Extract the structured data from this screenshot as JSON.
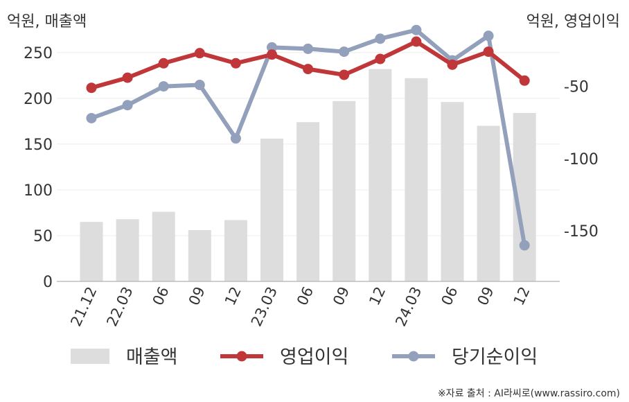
{
  "chart_data": {
    "type": "bar+line",
    "left_axis_unit": "억원, 매출액",
    "right_axis_unit": "억원, 영업이익",
    "categories": [
      "21.12",
      "22.03",
      "06",
      "09",
      "12",
      "23.03",
      "06",
      "09",
      "12",
      "24.03",
      "06",
      "09",
      "12"
    ],
    "left_axis": {
      "ylim": [
        0,
        262
      ],
      "ticks": [
        0,
        50,
        100,
        150,
        200,
        250
      ]
    },
    "right_axis": {
      "ylim": [
        -185,
        -19
      ],
      "ticks": [
        -50,
        -100,
        -150
      ]
    },
    "series": [
      {
        "name": "매출액",
        "type": "bar",
        "axis": "left",
        "color": "#dddddd",
        "values": [
          65,
          68,
          76,
          56,
          67,
          156,
          174,
          197,
          232,
          222,
          196,
          170,
          184
        ]
      },
      {
        "name": "영업이익",
        "type": "line",
        "axis": "right",
        "color": "#c0373a",
        "values": [
          -51,
          -44,
          -34,
          -27,
          -34,
          -28,
          -38,
          -42,
          -31,
          -19,
          -35,
          -26,
          -46
        ]
      },
      {
        "name": "당기순이익",
        "type": "line",
        "axis": "right",
        "color": "#93a0bb",
        "values": [
          -72,
          -63,
          -50,
          -49,
          -86,
          -23,
          -24,
          -26,
          -17,
          -11,
          -32,
          -15,
          -160
        ]
      }
    ],
    "grid": true,
    "legend_position": "bottom"
  },
  "source": "※자료 출처 : AI라씨로(www.rassiro.com)"
}
